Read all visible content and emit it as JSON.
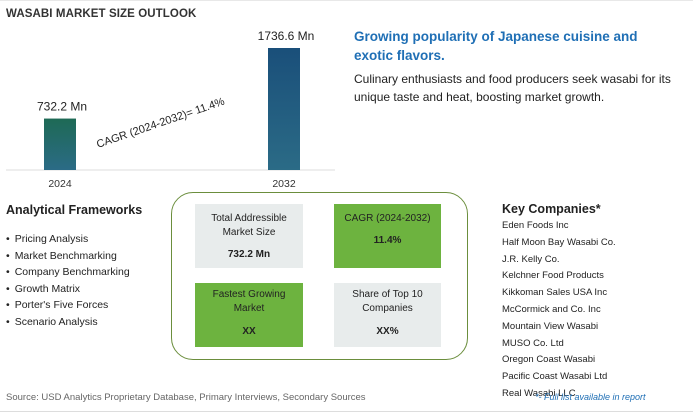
{
  "title": "WASABI MARKET SIZE OUTLOOK",
  "chart_data": {
    "type": "bar",
    "categories": [
      "2024",
      "2032"
    ],
    "values": [
      732.2,
      1736.6
    ],
    "value_labels": [
      "732.2 Mn",
      "1736.6 Mn"
    ],
    "unit": "Mn",
    "annotation": "CAGR (2024-2032)=  11.4%",
    "bar_colors": [
      "#1e6a55",
      "#1a4f7a"
    ],
    "ylim": [
      0,
      1736.6
    ],
    "grid": false,
    "legend": "none"
  },
  "highlight": {
    "heading": "Growing popularity of Japanese cuisine and exotic flavors.",
    "description": "Culinary enthusiasts and food producers seek wasabi for its unique taste and heat, boosting market growth."
  },
  "frameworks": {
    "title": "Analytical Frameworks",
    "items": [
      "Pricing Analysis",
      "Market Benchmarking",
      "Company Benchmarking",
      "Growth Matrix",
      "Porter's Five Forces",
      "Scenario Analysis"
    ]
  },
  "metrics": {
    "tam_label": "Total Addressible Market Size",
    "tam_value": "732.2 Mn",
    "cagr_label": "CAGR (2024-2032)",
    "cagr_value": "11.4%",
    "fastest_label": "Fastest Growing Market",
    "fastest_value": "XX",
    "share_label": "Share of Top 10 Companies",
    "share_value": "XX%"
  },
  "companies": {
    "title": "Key Companies*",
    "items": [
      "Eden Foods Inc",
      "Half Moon Bay Wasabi Co.",
      "J.R. Kelly Co.",
      "Kelchner Food Products",
      "Kikkoman Sales USA Inc",
      "McCormick and Co. Inc",
      "Mountain View Wasabi",
      "MUSO Co. Ltd",
      "Oregon Coast Wasabi",
      "Pacific Coast Wasabi Ltd",
      "Real Wasabi LLC"
    ]
  },
  "footer": {
    "source": "Source: USD Analytics Proprietary Database, Primary Interviews, Secondary Sources",
    "full_list": "*- Full list available in report"
  },
  "colors": {
    "accent_blue": "#1f6fb5",
    "green": "#6db33f",
    "frame_green": "#6b8e3d"
  }
}
